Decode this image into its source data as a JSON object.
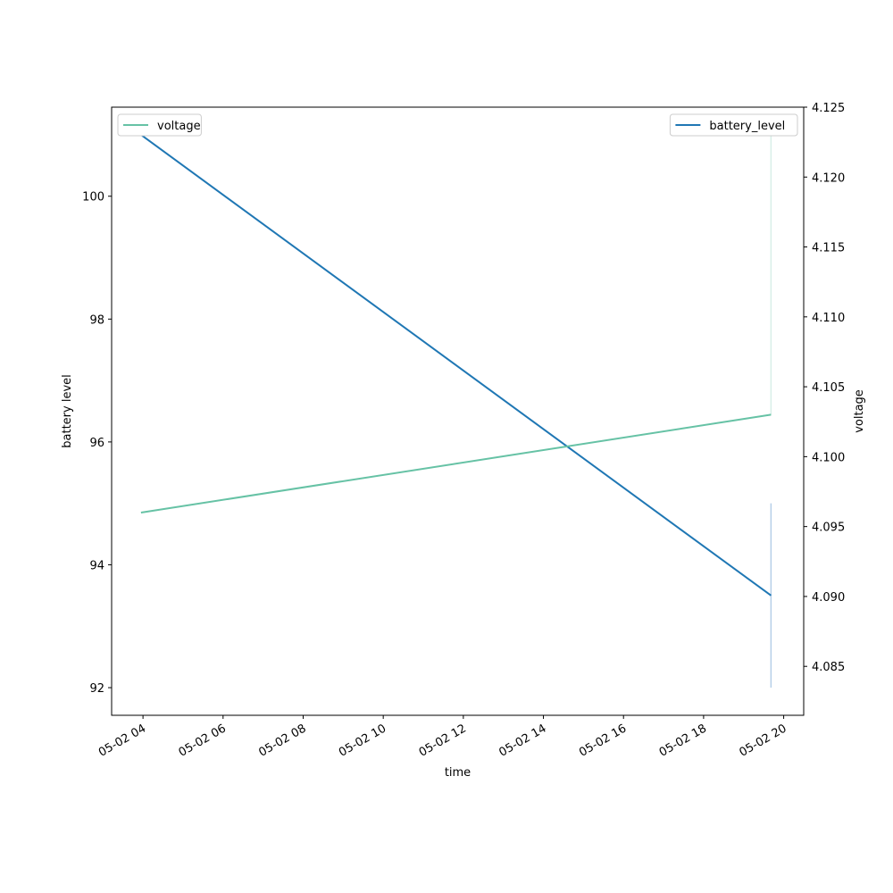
{
  "chart_data": {
    "type": "line",
    "title": "",
    "xlabel": "time",
    "ylabel": "battery level",
    "ylabel_right": "voltage",
    "x_ticks": [
      "05-02 04",
      "05-02 06",
      "05-02 08",
      "05-02 10",
      "05-02 12",
      "05-02 14",
      "05-02 16",
      "05-02 18",
      "05-02 20"
    ],
    "xlim": [
      "05-02 03:13",
      "05-02 20:30"
    ],
    "ylim": [
      91.55,
      101.45
    ],
    "y_ticks": [
      92,
      94,
      96,
      98,
      100
    ],
    "ylim_right": [
      4.0815,
      4.125
    ],
    "y_ticks_right": [
      4.085,
      4.09,
      4.095,
      4.1,
      4.105,
      4.11,
      4.115,
      4.12,
      4.125
    ],
    "series": [
      {
        "name": "battery_level",
        "axis": "left",
        "color": "#1f77b4",
        "x": [
          "05-02 03:57",
          "05-02 19:41"
        ],
        "y": [
          101.0,
          93.5
        ]
      },
      {
        "name": "voltage",
        "axis": "right",
        "color": "#66c2a5",
        "x": [
          "05-02 03:57",
          "05-02 19:41"
        ],
        "y": [
          4.096,
          4.103
        ]
      }
    ],
    "bands": [
      {
        "axis": "right",
        "color": "#d8efe8",
        "x": "05-02 19:41",
        "y": [
          4.103,
          4.123
        ]
      },
      {
        "axis": "left",
        "color": "#b5cfe9",
        "x": "05-02 19:41",
        "y": [
          92.0,
          95.0
        ]
      }
    ],
    "legend": [
      {
        "label": "voltage",
        "color": "#66c2a5",
        "position": "top-left"
      },
      {
        "label": "battery_level",
        "color": "#1f77b4",
        "position": "top-right"
      }
    ],
    "grid": false
  }
}
